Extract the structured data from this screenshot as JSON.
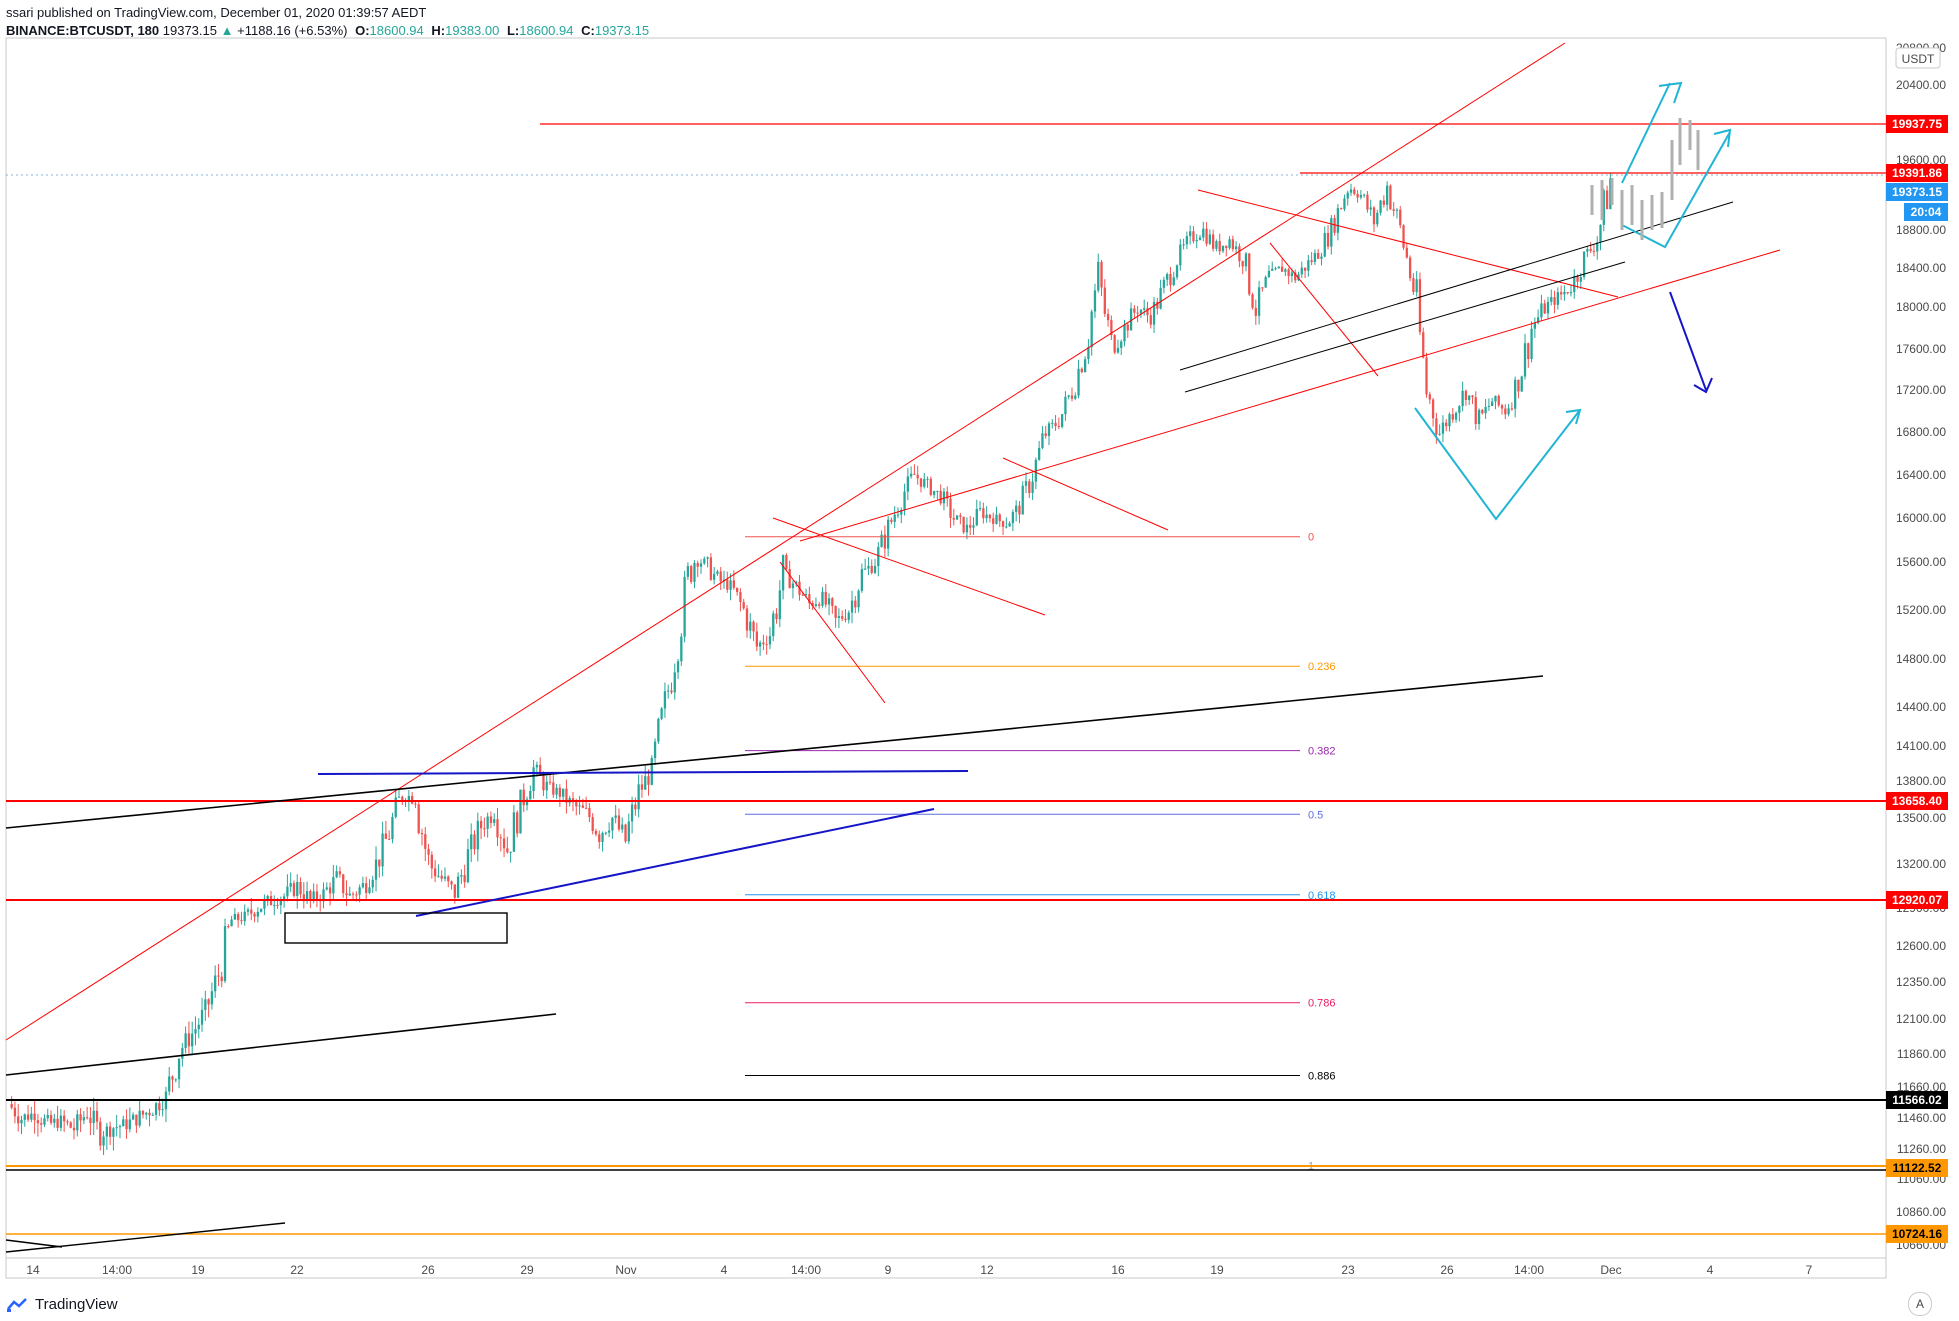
{
  "header": {
    "publisher": "ssari published on TradingView.com, December 01, 2020 01:39:57 AEDT",
    "symbol": "BINANCE:BTCUSDT, 180",
    "last": "19373.15",
    "change": "+1188.16 (+6.53%)",
    "open_label": "O:",
    "open": "18600.94",
    "high_label": "H:",
    "high": "19383.00",
    "low_label": "L:",
    "low": "18600.94",
    "close_label": "C:",
    "close": "19373.15"
  },
  "footer": {
    "logo_text": "TradingView",
    "auto_button": "A"
  },
  "colors": {
    "up": "#26a69a",
    "down": "#ef5350",
    "red_line": "#ff0000",
    "black_line": "#000000",
    "blue_line": "#1515c8",
    "cyan_arrow": "#20b5d5",
    "orange_line": "#ff9800",
    "price_tag_blue": "#2196f3"
  },
  "chart_data": {
    "type": "candlestick",
    "title": "",
    "symbol": "BINANCE:BTCUSDT",
    "interval": "180",
    "currency": "USDT",
    "ylim": [
      10700,
      20900
    ],
    "y_ticks": [
      "20800.00",
      "20400.00",
      "20000.00",
      "19600.00",
      "19200.00",
      "18800.00",
      "18400.00",
      "18000.00",
      "17600.00",
      "17200.00",
      "16800.00",
      "16400.00",
      "16000.00",
      "15600.00",
      "15200.00",
      "14800.00",
      "14400.00",
      "14100.00",
      "13800.00",
      "13500.00",
      "13200.00",
      "12900.00",
      "12600.00",
      "12350.00",
      "12100.00",
      "11860.00",
      "11660.00",
      "11460.00",
      "11260.00",
      "11060.00",
      "10860.00",
      "10660.00"
    ],
    "x_ticks": [
      "14",
      "14:00",
      "19",
      "22",
      "26",
      "29",
      "Nov",
      "4",
      "14:00",
      "9",
      "12",
      "16",
      "19",
      "23",
      "26",
      "14:00",
      "Dec",
      "4",
      "7"
    ],
    "price_tags": [
      {
        "label": "19937.75",
        "color": "#ff0000"
      },
      {
        "label": "19391.86",
        "color": "#ff0000"
      },
      {
        "label": "19373.15",
        "color": "#2196f3"
      },
      {
        "label": "20:04",
        "color": "#2196f3"
      },
      {
        "label": "13658.40",
        "color": "#ff0000"
      },
      {
        "label": "12920.07",
        "color": "#ff0000"
      },
      {
        "label": "11566.02",
        "color": "#000000"
      },
      {
        "label": "11122.52",
        "color": "#ff9800"
      },
      {
        "label": "10724.16",
        "color": "#ff9800"
      }
    ],
    "fib_levels": [
      {
        "label": "0",
        "price": 15830,
        "color": "#ef5350"
      },
      {
        "label": "0.236",
        "price": 14740,
        "color": "#ff9800"
      },
      {
        "label": "0.382",
        "price": 14060,
        "color": "#9c27b0"
      },
      {
        "label": "0.5",
        "price": 13530,
        "color": "#5b6ee1"
      },
      {
        "label": "0.618",
        "price": 12990,
        "color": "#2196f3"
      },
      {
        "label": "0.786",
        "price": 12210,
        "color": "#e91e63"
      },
      {
        "label": "0.886",
        "price": 11730,
        "color": "#000000"
      },
      {
        "label": "1",
        "price": 11150,
        "color": "#9e9e9e"
      }
    ],
    "price_path": [
      11550,
      11460,
      11490,
      11420,
      11440,
      11390,
      11500,
      11360,
      11400,
      11420,
      11470,
      11520,
      11600,
      11880,
      12000,
      12150,
      12400,
      12800,
      12830,
      12900,
      12950,
      12980,
      13050,
      12950,
      13000,
      13100,
      12980,
      13050,
      13200,
      13400,
      13700,
      13650,
      13200,
      13100,
      13000,
      13250,
      13450,
      13550,
      13300,
      13600,
      13900,
      13750,
      13700,
      13600,
      13550,
      13400,
      13500,
      13350,
      13700,
      13900,
      14400,
      15000,
      15600,
      15600,
      15450,
      15400,
      15200,
      14900,
      15000,
      15500,
      15400,
      15250,
      15300,
      15100,
      15200,
      15500,
      15600,
      15900,
      16200,
      16400,
      16300,
      16200,
      16000,
      15900,
      16050,
      16000,
      15950,
      16100,
      16400,
      16800,
      16900,
      17200,
      17600,
      18300,
      17600,
      17800,
      18000,
      17900,
      18200,
      18500,
      18700,
      18800,
      18600,
      18700,
      18500,
      18000,
      18300,
      18400,
      18300,
      18450,
      18600,
      18900,
      19300,
      19200,
      18900,
      19300,
      18800,
      18200,
      17200,
      16800,
      17000,
      17200,
      16900,
      17100,
      17000,
      17300,
      17800,
      18000,
      18100,
      18200,
      18500,
      18700,
      19373
    ]
  }
}
